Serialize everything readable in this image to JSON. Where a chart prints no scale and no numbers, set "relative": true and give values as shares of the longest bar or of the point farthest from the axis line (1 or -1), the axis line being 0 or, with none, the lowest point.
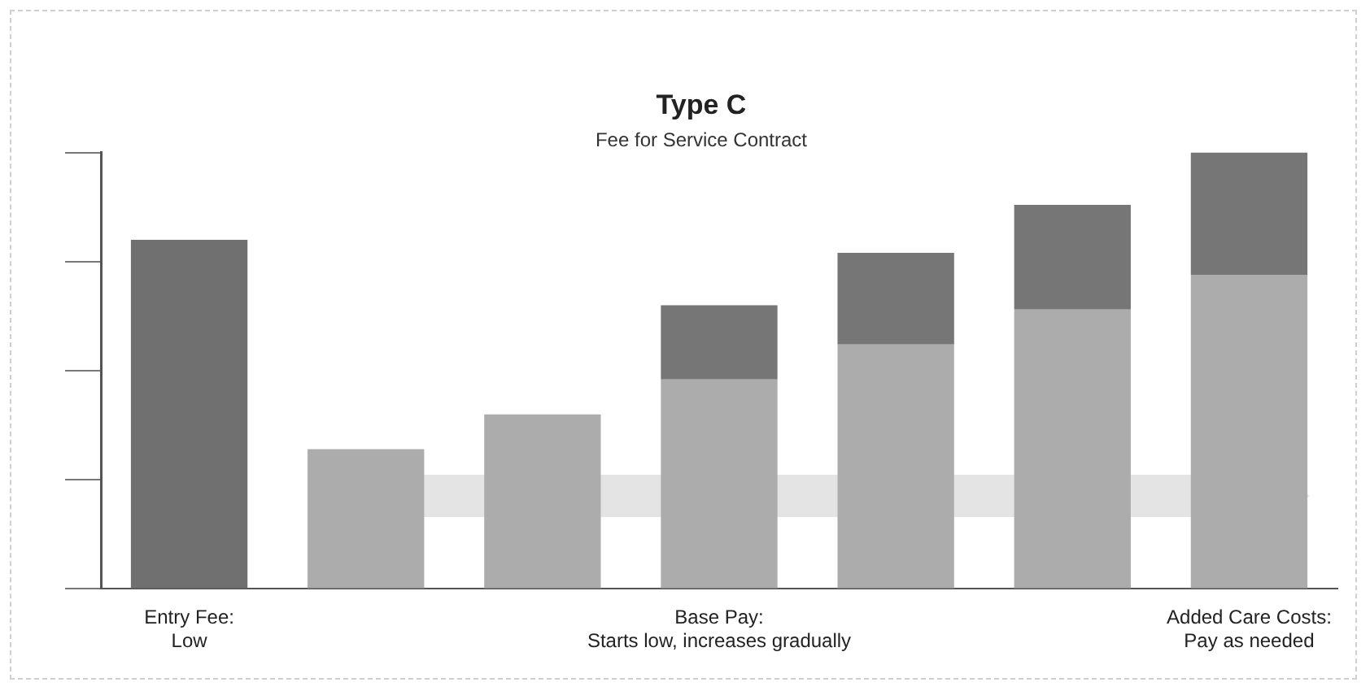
{
  "chart_data": {
    "type": "bar",
    "title": "Type C",
    "subtitle": "Fee for Service Contract",
    "relative": true,
    "stacked": true,
    "legend": false,
    "grid": false,
    "categories": [
      "Entry Fee:\nLow",
      null,
      null,
      "Base Pay:\nStarts low, increases gradually",
      null,
      null,
      "Added Care Costs:\nPay as needed"
    ],
    "series": [
      {
        "color": "#707070",
        "values": [
          0.8,
          null,
          null,
          null,
          null,
          null,
          null
        ]
      },
      {
        "color": "#acacac",
        "values": [
          null,
          0.32,
          0.4,
          0.48,
          0.56,
          0.64,
          0.72
        ]
      },
      {
        "color": "#767676",
        "values": [
          null,
          null,
          null,
          0.17,
          0.21,
          0.24,
          0.28
        ]
      }
    ]
  }
}
